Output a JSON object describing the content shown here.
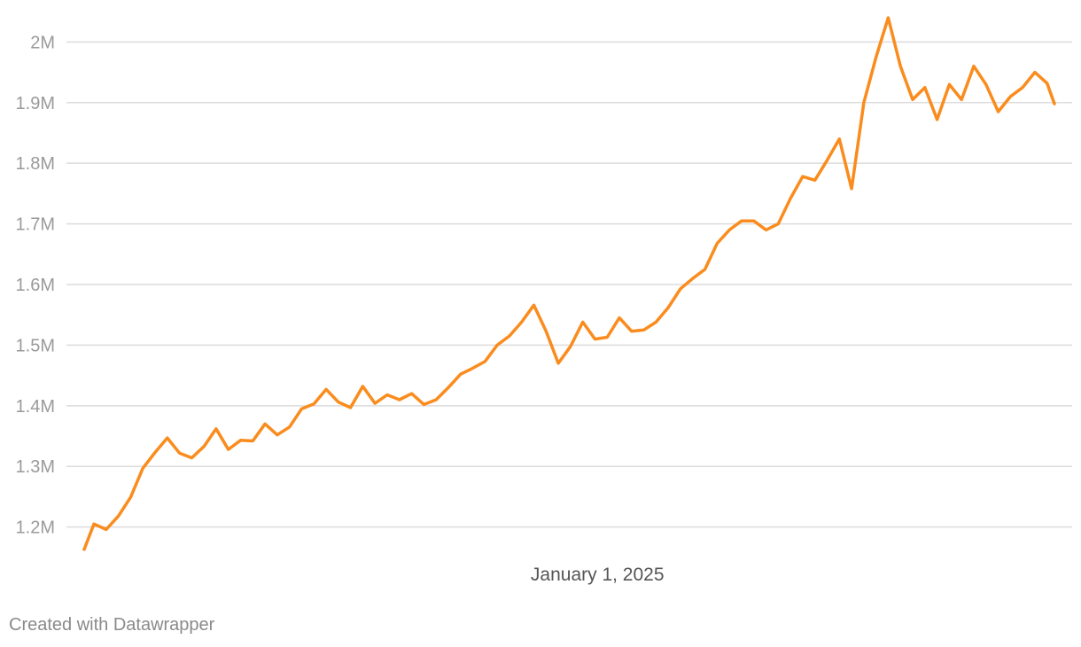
{
  "chart_data": {
    "type": "line",
    "title": "",
    "xlabel": "",
    "ylabel": "",
    "ylim": [
      1160000,
      2040000
    ],
    "yticks": [
      1200000,
      1300000,
      1400000,
      1500000,
      1600000,
      1700000,
      1800000,
      1900000,
      2000000
    ],
    "ytick_labels": [
      "1.2M",
      "1.3M",
      "1.4M",
      "1.5M",
      "1.6M",
      "1.7M",
      "1.8M",
      "1.9M",
      "2M"
    ],
    "x_range": [
      "2024-06-05",
      "2025-07-07"
    ],
    "xticks": [
      {
        "date": "2025-01-01",
        "label": "January 1, 2025"
      }
    ],
    "grid": true,
    "legend": "none",
    "line_color": "#fa8c1e",
    "series": [
      {
        "x": [
          "2024-06-05",
          "2024-06-09",
          "2024-06-14",
          "2024-06-19",
          "2024-06-24",
          "2024-06-29",
          "2024-07-04",
          "2024-07-09",
          "2024-07-14",
          "2024-07-19",
          "2024-07-24",
          "2024-07-29",
          "2024-08-03",
          "2024-08-08",
          "2024-08-13",
          "2024-08-18",
          "2024-08-23",
          "2024-08-28",
          "2024-09-02",
          "2024-09-07",
          "2024-09-12",
          "2024-09-17",
          "2024-09-22",
          "2024-09-27",
          "2024-10-02",
          "2024-10-07",
          "2024-10-12",
          "2024-10-17",
          "2024-10-22",
          "2024-10-27",
          "2024-11-01",
          "2024-11-06",
          "2024-11-11",
          "2024-11-16",
          "2024-11-21",
          "2024-11-26",
          "2024-12-01",
          "2024-12-06",
          "2024-12-11",
          "2024-12-16",
          "2024-12-21",
          "2024-12-26",
          "2024-12-31",
          "2025-01-05",
          "2025-01-10",
          "2025-01-15",
          "2025-01-20",
          "2025-01-25",
          "2025-01-30",
          "2025-02-04",
          "2025-02-09",
          "2025-02-14",
          "2025-02-19",
          "2025-02-24",
          "2025-03-01",
          "2025-03-06",
          "2025-03-11",
          "2025-03-16",
          "2025-03-21",
          "2025-03-26",
          "2025-03-31",
          "2025-04-05",
          "2025-04-10",
          "2025-04-15",
          "2025-04-20",
          "2025-04-25",
          "2025-04-30",
          "2025-05-05",
          "2025-05-10",
          "2025-05-15",
          "2025-05-20",
          "2025-05-25",
          "2025-05-30",
          "2025-06-04",
          "2025-06-09",
          "2025-06-14",
          "2025-06-19",
          "2025-06-24",
          "2025-06-29",
          "2025-07-04",
          "2025-07-07"
        ],
        "values": [
          1163000,
          1205000,
          1196000,
          1218000,
          1249000,
          1297000,
          1323000,
          1347000,
          1322000,
          1314000,
          1333000,
          1362000,
          1328000,
          1343000,
          1342000,
          1370000,
          1352000,
          1365000,
          1395000,
          1403000,
          1427000,
          1406000,
          1397000,
          1432000,
          1404000,
          1418000,
          1410000,
          1420000,
          1402000,
          1410000,
          1430000,
          1452000,
          1462000,
          1473000,
          1500000,
          1515000,
          1538000,
          1566000,
          1523000,
          1470000,
          1498000,
          1538000,
          1510000,
          1513000,
          1545000,
          1523000,
          1525000,
          1538000,
          1562000,
          1593000,
          1610000,
          1625000,
          1668000,
          1690000,
          1705000,
          1705000,
          1690000,
          1700000,
          1742000,
          1778000,
          1772000,
          1805000,
          1840000,
          1758000,
          1900000,
          1975000,
          2040000,
          1960000,
          1905000,
          1925000,
          1872000,
          1930000,
          1905000,
          1960000,
          1930000,
          1885000,
          1910000,
          1925000,
          1950000,
          1932000,
          1898000
        ]
      }
    ]
  },
  "footer": {
    "credit": "Created with Datawrapper"
  }
}
